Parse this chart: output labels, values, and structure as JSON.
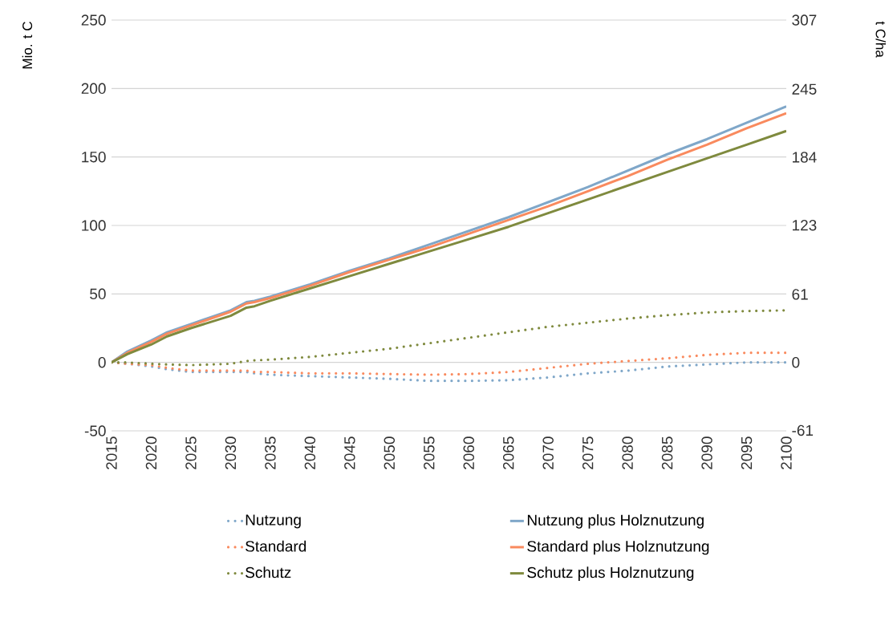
{
  "chart_data": {
    "type": "line",
    "ylabel": "Mio. t C",
    "y2label": "t C/ha",
    "x": [
      2015,
      2017,
      2020,
      2022,
      2025,
      2030,
      2032,
      2033,
      2035,
      2040,
      2045,
      2050,
      2055,
      2060,
      2065,
      2070,
      2075,
      2080,
      2085,
      2090,
      2095,
      2100
    ],
    "series": [
      {
        "name": "Nutzung",
        "color": "#7fa7c9",
        "line_style": "dotted",
        "values": [
          0,
          -1,
          -3,
          -5,
          -7,
          -7,
          -7,
          -8,
          -9,
          -10,
          -11,
          -12,
          -13.5,
          -13.5,
          -13,
          -11,
          -8,
          -6,
          -3,
          -1.5,
          0,
          0
        ]
      },
      {
        "name": "Nutzung plus Holznutzung",
        "color": "#7fa7c9",
        "line_style": "solid",
        "values": [
          0,
          8,
          16,
          22,
          28,
          38,
          44,
          45,
          48,
          57,
          67,
          76,
          86,
          96,
          106,
          117,
          128,
          140,
          152,
          163,
          175,
          187
        ]
      },
      {
        "name": "Standard",
        "color": "#f98a5e",
        "line_style": "dotted",
        "values": [
          0,
          -1,
          -2,
          -4,
          -6,
          -6,
          -6,
          -7,
          -7,
          -8,
          -8,
          -8.5,
          -9,
          -8.5,
          -7,
          -4,
          -1,
          1,
          3,
          5.5,
          7,
          7
        ]
      },
      {
        "name": "Standard plus Holznutzung",
        "color": "#f98a5e",
        "line_style": "solid",
        "values": [
          0,
          7,
          15,
          21,
          27,
          37,
          43,
          44,
          47,
          56,
          66,
          75,
          84,
          94,
          104,
          114,
          125,
          136,
          148,
          159,
          171,
          182
        ]
      },
      {
        "name": "Schutz",
        "color": "#7f8a3e",
        "line_style": "dotted",
        "values": [
          0,
          0,
          -1,
          -1.5,
          -2,
          -1,
          1,
          1.5,
          2,
          4,
          7,
          10,
          14,
          18,
          22,
          26,
          29,
          32,
          34.5,
          36.5,
          37.5,
          38
        ]
      },
      {
        "name": "Schutz plus Holznutzung",
        "color": "#7f8a3e",
        "line_style": "solid",
        "values": [
          0,
          6,
          13,
          19,
          25,
          34,
          40,
          41,
          45,
          54,
          63,
          72,
          81,
          90,
          99,
          109,
          119,
          129,
          139,
          149,
          159,
          169
        ]
      }
    ],
    "xlim": [
      2015,
      2100
    ],
    "xticks": [
      2015,
      2020,
      2025,
      2030,
      2035,
      2040,
      2045,
      2050,
      2055,
      2060,
      2065,
      2070,
      2075,
      2080,
      2085,
      2090,
      2095,
      2100
    ],
    "ylim": [
      -50,
      250
    ],
    "yticks": [
      -50,
      0,
      50,
      100,
      150,
      200,
      250
    ],
    "y2lim": [
      -61.4,
      307
    ],
    "y2ticks": [
      -61,
      0,
      61,
      123,
      184,
      245,
      307
    ],
    "grid": "y",
    "legend": "bottom",
    "marker": "none"
  }
}
